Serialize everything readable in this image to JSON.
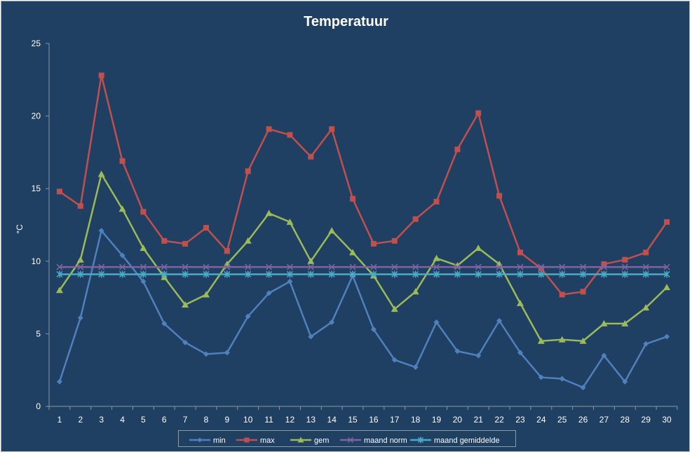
{
  "chart_data": {
    "type": "line",
    "title": "Temperatuur",
    "xlabel": "",
    "ylabel": "°C",
    "ylim": [
      0,
      25
    ],
    "yticks": [
      0,
      5,
      10,
      15,
      20,
      25
    ],
    "categories": [
      "1",
      "2",
      "3",
      "4",
      "5",
      "6",
      "7",
      "8",
      "9",
      "10",
      "11",
      "12",
      "13",
      "14",
      "15",
      "16",
      "17",
      "18",
      "19",
      "20",
      "21",
      "22",
      "23",
      "24",
      "25",
      "26",
      "27",
      "28",
      "29",
      "30"
    ],
    "grid": false,
    "legend_position": "bottom",
    "series": [
      {
        "name": "min",
        "color": "#4f81bd",
        "marker": "diamond",
        "values": [
          1.7,
          6.1,
          12.1,
          10.4,
          8.6,
          5.7,
          4.4,
          3.6,
          3.7,
          6.2,
          7.8,
          8.6,
          4.8,
          5.8,
          9.0,
          5.3,
          3.2,
          2.7,
          5.8,
          3.8,
          3.5,
          5.9,
          3.7,
          2.0,
          1.9,
          1.3,
          3.5,
          1.7,
          4.3,
          4.8
        ]
      },
      {
        "name": "max",
        "color": "#c0504d",
        "marker": "square",
        "values": [
          14.8,
          13.8,
          22.8,
          16.9,
          13.4,
          11.4,
          11.2,
          12.3,
          10.7,
          16.2,
          19.1,
          18.7,
          17.2,
          19.1,
          14.3,
          11.2,
          11.4,
          12.9,
          14.1,
          17.7,
          20.2,
          14.5,
          10.6,
          9.5,
          7.7,
          7.9,
          9.8,
          10.1,
          10.6,
          12.7
        ]
      },
      {
        "name": "gem",
        "color": "#9bbb59",
        "marker": "triangle",
        "values": [
          8.0,
          10.1,
          16.0,
          13.6,
          10.9,
          8.9,
          7.0,
          7.7,
          9.8,
          11.4,
          13.3,
          12.7,
          10.0,
          12.1,
          10.6,
          9.0,
          6.7,
          7.9,
          10.2,
          9.7,
          10.9,
          9.8,
          7.1,
          4.5,
          4.6,
          4.5,
          5.7,
          5.7,
          6.8,
          8.2
        ]
      },
      {
        "name": "maand norm",
        "color": "#8064a2",
        "marker": "x",
        "values": [
          9.6,
          9.6,
          9.6,
          9.6,
          9.6,
          9.6,
          9.6,
          9.6,
          9.6,
          9.6,
          9.6,
          9.6,
          9.6,
          9.6,
          9.6,
          9.6,
          9.6,
          9.6,
          9.6,
          9.6,
          9.6,
          9.6,
          9.6,
          9.6,
          9.6,
          9.6,
          9.6,
          9.6,
          9.6,
          9.6
        ]
      },
      {
        "name": "maand gemiddelde",
        "color": "#4bacc6",
        "marker": "star",
        "values": [
          9.1,
          9.1,
          9.1,
          9.1,
          9.1,
          9.1,
          9.1,
          9.1,
          9.1,
          9.1,
          9.1,
          9.1,
          9.1,
          9.1,
          9.1,
          9.1,
          9.1,
          9.1,
          9.1,
          9.1,
          9.1,
          9.1,
          9.1,
          9.1,
          9.1,
          9.1,
          9.1,
          9.1,
          9.1,
          9.1
        ]
      }
    ]
  }
}
